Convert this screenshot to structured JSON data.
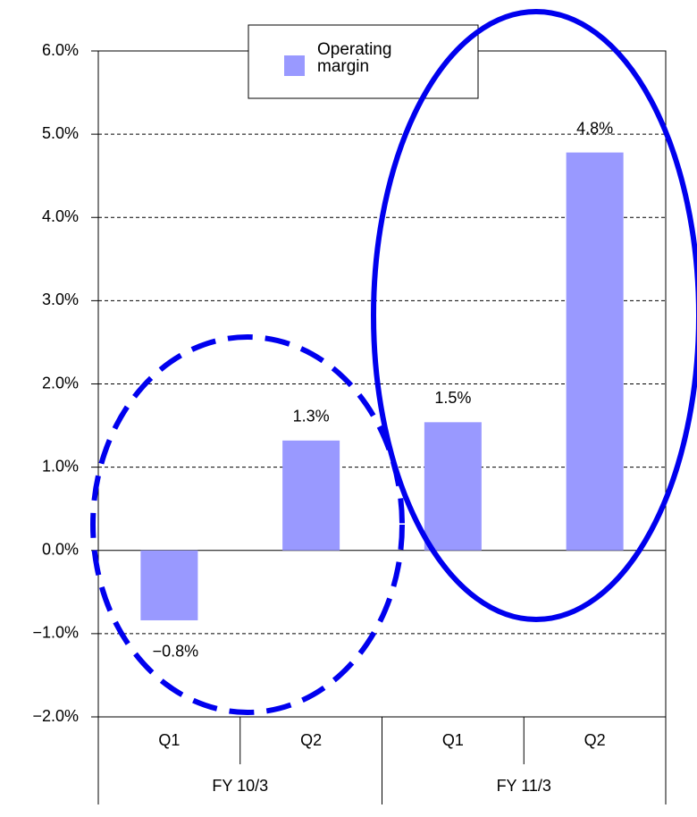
{
  "chart_data": {
    "type": "bar",
    "categories": [
      "Q1",
      "Q2",
      "Q1",
      "Q2"
    ],
    "group_labels": [
      "FY 10/3",
      "FY 11/3"
    ],
    "series": [
      {
        "name": "Operating margin",
        "color": "#9999ff",
        "values": [
          -0.84,
          1.32,
          1.54,
          4.78
        ],
        "value_labels": [
          "−0.8%",
          "1.3%",
          "1.5%",
          "4.8%"
        ]
      }
    ],
    "ylim": [
      -2,
      6
    ],
    "yticks": [
      {
        "value": -2,
        "label": "−2.0%"
      },
      {
        "value": -1,
        "label": "−1.0%"
      },
      {
        "value": 0,
        "label": "0.0%"
      },
      {
        "value": 1,
        "label": "1.0%"
      },
      {
        "value": 2,
        "label": "2.0%"
      },
      {
        "value": 3,
        "label": "3.0%"
      },
      {
        "value": 4,
        "label": "4.0%"
      },
      {
        "value": 5,
        "label": "5.0%"
      },
      {
        "value": 6,
        "label": "6.0%"
      }
    ],
    "grid": true
  }
}
